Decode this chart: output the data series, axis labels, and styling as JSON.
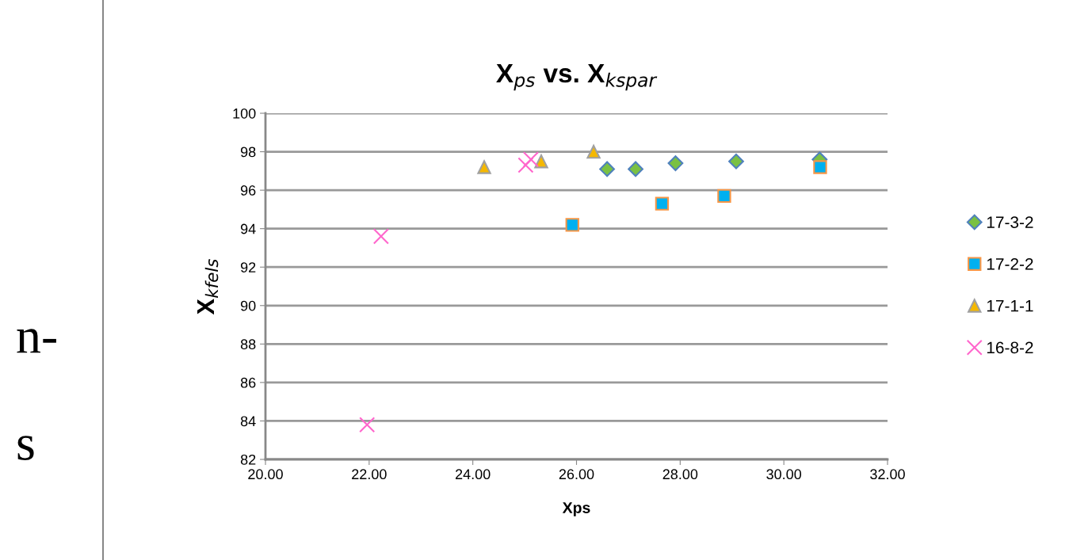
{
  "chart_data": {
    "type": "scatter",
    "title": "X$_{ps}$ vs. X$_{kspar}$",
    "xlabel": "Xps",
    "ylabel": "X$_{kfels}$",
    "xlim": [
      20,
      32
    ],
    "xticks": [
      {
        "value": 20,
        "label": "20.00"
      },
      {
        "value": 22,
        "label": "22.00"
      },
      {
        "value": 24,
        "label": "24.00"
      },
      {
        "value": 26,
        "label": "26.00"
      },
      {
        "value": 28,
        "label": "28.00"
      },
      {
        "value": 30,
        "label": "30.00"
      },
      {
        "value": 32,
        "label": "32.00"
      }
    ],
    "ylim": [
      82,
      100
    ],
    "yticks": [
      82,
      84,
      86,
      88,
      90,
      92,
      94,
      96,
      98,
      100
    ],
    "grid": "y",
    "legend": "right",
    "annotations": [
      "n-",
      "s"
    ],
    "series": [
      {
        "name": "17-3-2",
        "color": "#7ac143",
        "marker": "diamond",
        "x": [
          26.59,
          27.14,
          27.91,
          29.08,
          30.69
        ],
        "values": [
          97.1,
          97.1,
          97.4,
          97.5,
          97.6
        ]
      },
      {
        "name": "17-2-2",
        "color": "#00b0f0",
        "marker": "square",
        "x": [
          25.92,
          27.65,
          28.85,
          30.7
        ],
        "values": [
          94.2,
          95.3,
          95.7,
          97.2
        ]
      },
      {
        "name": "17-1-1",
        "color": "#f5b800",
        "marker": "triangle",
        "x": [
          24.22,
          25.32,
          26.33
        ],
        "values": [
          97.2,
          97.5,
          98.0
        ]
      },
      {
        "name": "16-8-2",
        "color": "#ff66cc",
        "marker": "cross",
        "x": [
          22.23,
          21.96,
          25.02,
          25.12
        ],
        "values": [
          93.6,
          83.8,
          97.3,
          97.6
        ]
      }
    ]
  }
}
